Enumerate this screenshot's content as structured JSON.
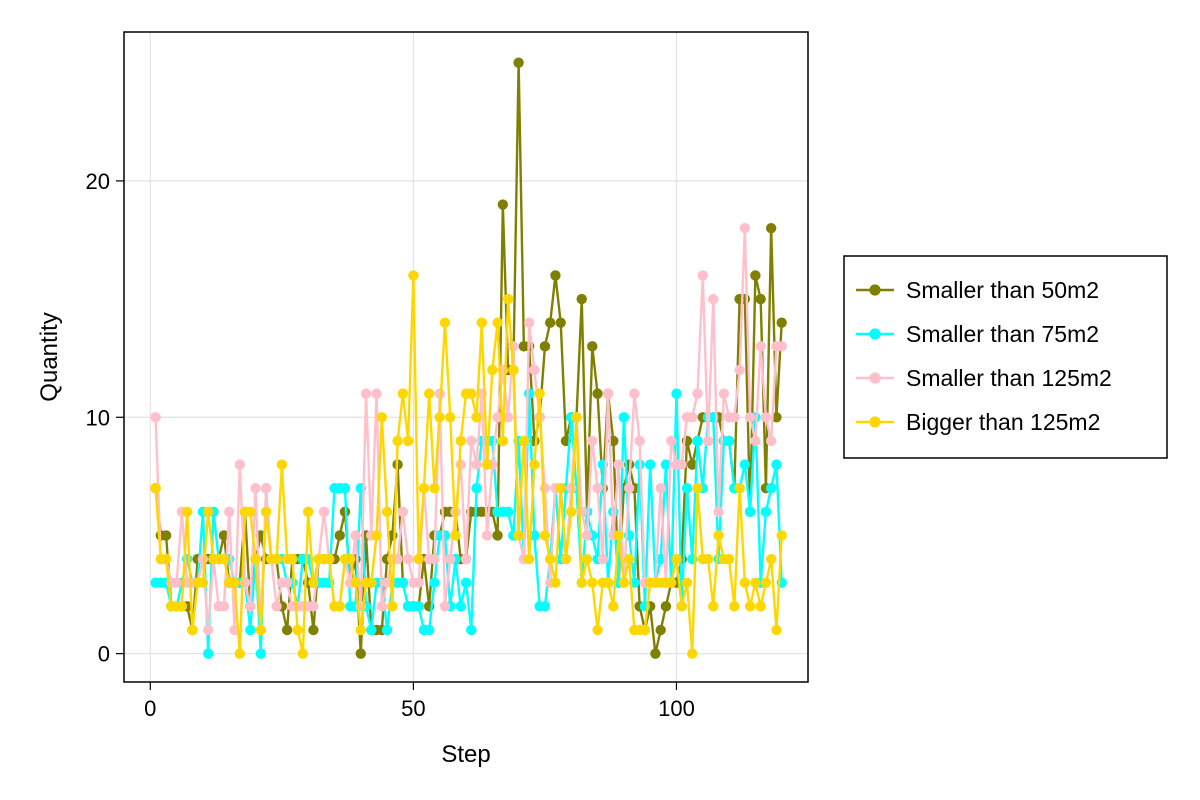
{
  "chart_data": {
    "type": "line",
    "xlabel": "Step",
    "ylabel": "Quantity",
    "xlim": [
      -5,
      125
    ],
    "ylim": [
      -1.2,
      26.3
    ],
    "xticks": [
      0,
      50,
      100
    ],
    "xtick_labels": [
      "0",
      "50",
      "100"
    ],
    "yticks": [
      0,
      10,
      20
    ],
    "ytick_labels": [
      "0",
      "10",
      "20"
    ],
    "grid": true,
    "legend_position": "right",
    "series": [
      {
        "name": "Smaller than 50m2",
        "color": "#808000",
        "values": [
          7,
          5,
          5,
          2,
          2,
          2,
          2,
          1,
          4,
          4,
          4,
          4,
          4,
          5,
          3,
          3,
          3,
          6,
          2,
          4,
          5,
          4,
          4,
          4,
          2,
          1,
          4,
          4,
          4,
          3,
          1,
          4,
          4,
          4,
          4,
          5,
          6,
          3,
          4,
          0,
          5,
          1,
          1,
          1,
          4,
          5,
          8,
          3,
          2,
          2,
          2,
          4,
          2,
          5,
          5,
          6,
          6,
          6,
          4,
          4,
          6,
          6,
          6,
          6,
          6,
          5,
          19,
          12,
          12,
          25,
          13,
          13,
          9,
          10,
          13,
          14,
          16,
          14,
          9,
          10,
          10,
          15,
          6,
          13,
          11,
          7,
          11,
          9,
          3,
          7,
          8,
          7,
          2,
          1,
          2,
          0,
          1,
          2,
          3,
          3,
          4,
          9,
          8,
          9,
          10,
          10,
          10,
          10,
          9,
          9,
          7,
          15,
          15,
          6,
          16,
          15,
          7,
          18,
          10,
          14
        ]
      },
      {
        "name": "Smaller than 75m2",
        "color": "#00ffff",
        "values": [
          3,
          3,
          3,
          2,
          2,
          3,
          4,
          3,
          3,
          6,
          0,
          6,
          4,
          4,
          4,
          3,
          3,
          3,
          1,
          4,
          0,
          7,
          4,
          4,
          4,
          3,
          3,
          2,
          4,
          4,
          3,
          3,
          3,
          3,
          7,
          7,
          7,
          2,
          2,
          7,
          2,
          1,
          3,
          3,
          1,
          3,
          3,
          3,
          2,
          2,
          2,
          1,
          1,
          3,
          5,
          5,
          2,
          4,
          2,
          3,
          1,
          7,
          9,
          9,
          9,
          6,
          6,
          6,
          5,
          9,
          4,
          11,
          5,
          2,
          2,
          4,
          7,
          4,
          7,
          10,
          7,
          3,
          6,
          5,
          4,
          8,
          3,
          6,
          3,
          10,
          5,
          3,
          8,
          2,
          8,
          3,
          4,
          8,
          3,
          11,
          2,
          7,
          4,
          9,
          7,
          10,
          10,
          4,
          9,
          9,
          7,
          7,
          8,
          6,
          10,
          3,
          6,
          7,
          8,
          3
        ]
      },
      {
        "name": "Smaller than 125m2",
        "color": "#ffc0cb",
        "values": [
          10,
          4,
          4,
          3,
          3,
          6,
          3,
          3,
          3,
          4,
          1,
          4,
          2,
          2,
          6,
          1,
          8,
          3,
          2,
          7,
          1,
          7,
          4,
          2,
          3,
          3,
          2,
          2,
          2,
          2,
          2,
          4,
          6,
          4,
          2,
          2,
          4,
          3,
          5,
          2,
          11,
          5,
          11,
          2,
          3,
          4,
          4,
          6,
          4,
          3,
          3,
          7,
          4,
          4,
          11,
          2,
          4,
          6,
          8,
          4,
          9,
          8,
          11,
          5,
          8,
          10,
          12,
          10,
          13,
          5,
          4,
          14,
          12,
          10,
          7,
          3,
          7,
          7,
          4,
          7,
          10,
          6,
          5,
          9,
          7,
          4,
          11,
          5,
          8,
          3,
          7,
          11,
          9,
          3,
          3,
          3,
          7,
          3,
          9,
          8,
          8,
          10,
          10,
          11,
          16,
          9,
          15,
          6,
          11,
          10,
          10,
          12,
          18,
          10,
          9,
          13,
          10,
          9,
          13,
          13
        ]
      },
      {
        "name": "Bigger than 125m2",
        "color": "#ffd700",
        "values": [
          7,
          4,
          4,
          2,
          2,
          2,
          6,
          1,
          3,
          3,
          6,
          4,
          4,
          4,
          3,
          3,
          0,
          6,
          6,
          4,
          1,
          6,
          4,
          4,
          8,
          4,
          4,
          1,
          0,
          6,
          3,
          4,
          4,
          4,
          2,
          2,
          4,
          4,
          3,
          1,
          3,
          3,
          5,
          10,
          6,
          2,
          9,
          11,
          9,
          16,
          4,
          7,
          11,
          7,
          10,
          14,
          10,
          5,
          9,
          11,
          11,
          10,
          14,
          8,
          12,
          14,
          9,
          15,
          12,
          5,
          9,
          4,
          8,
          11,
          5,
          4,
          3,
          7,
          4,
          6,
          10,
          3,
          4,
          3,
          1,
          3,
          3,
          2,
          5,
          3,
          4,
          1,
          1,
          1,
          3,
          3,
          3,
          3,
          3,
          4,
          2,
          3,
          0,
          7,
          4,
          4,
          2,
          5,
          4,
          4,
          2,
          7,
          3,
          2,
          3,
          2,
          3,
          4,
          1,
          5
        ]
      }
    ]
  }
}
